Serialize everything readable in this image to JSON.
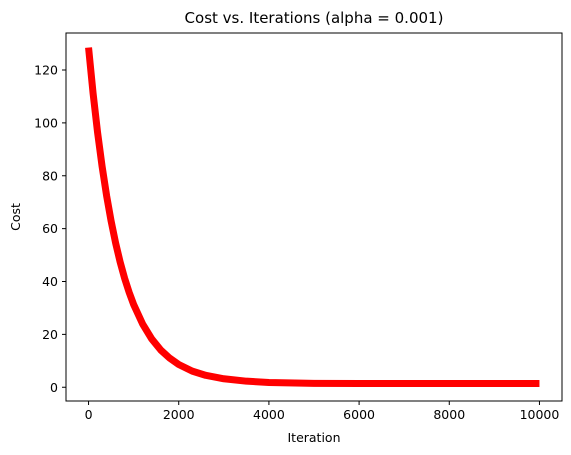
{
  "chart_data": {
    "type": "line",
    "title": "Cost vs. Iterations (alpha = 0.001)",
    "xlabel": "Iteration",
    "ylabel": "Cost",
    "xlim": [
      -500,
      10500
    ],
    "ylim": [
      -5.2,
      134
    ],
    "xticks": [
      0,
      2000,
      4000,
      6000,
      8000,
      10000
    ],
    "xtick_labels": [
      "0",
      "2000",
      "4000",
      "6000",
      "8000",
      "10000"
    ],
    "yticks": [
      0,
      20,
      40,
      60,
      80,
      100,
      120
    ],
    "ytick_labels": [
      "0",
      "20",
      "40",
      "60",
      "80",
      "100",
      "120"
    ],
    "grid": false,
    "series": [
      {
        "color": "#ff0000",
        "x": [
          0,
          100,
          200,
          300,
          400,
          500,
          600,
          700,
          800,
          900,
          1000,
          1200,
          1400,
          1600,
          1800,
          2000,
          2300,
          2600,
          3000,
          3500,
          4000,
          5000,
          6000,
          7000,
          8000,
          9000,
          10000
        ],
        "y": [
          128.5,
          111.3,
          96.4,
          83.6,
          72.5,
          62.9,
          54.6,
          47.4,
          41.2,
          35.9,
          31.3,
          23.9,
          18.3,
          14.1,
          11.0,
          8.6,
          6.1,
          4.5,
          3.2,
          2.3,
          1.8,
          1.45,
          1.4,
          1.4,
          1.4,
          1.4,
          1.4
        ]
      }
    ]
  }
}
